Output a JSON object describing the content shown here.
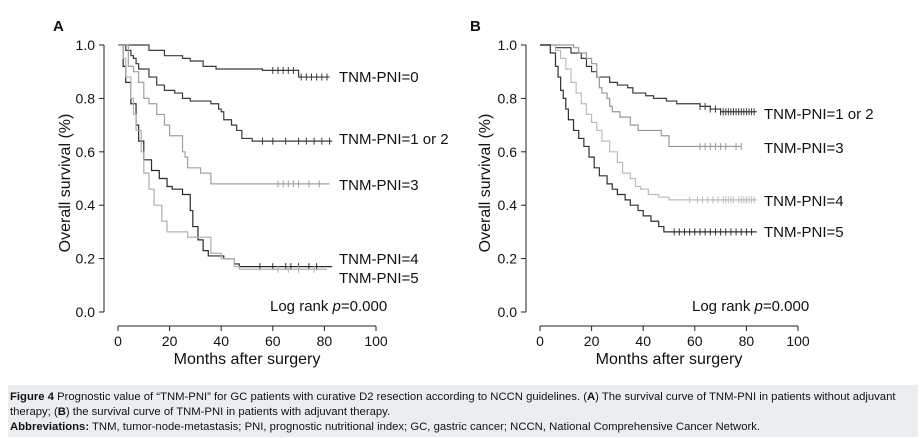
{
  "chart_data": [
    {
      "type": "line",
      "subtype": "kaplan-meier",
      "panel_label": "A",
      "xlabel": "Months after surgery",
      "ylabel": "Overall survival (%)",
      "xlim": [
        0,
        100
      ],
      "ylim": [
        0,
        1.0
      ],
      "xticks": [
        "0",
        "20",
        "40",
        "60",
        "80",
        "100"
      ],
      "yticks": [
        "0.0",
        "0.2",
        "0.4",
        "0.6",
        "0.8",
        "1.0"
      ],
      "annotation_prefix": "Log rank ",
      "annotation_var": "p",
      "annotation_value": "=0.000",
      "series": [
        {
          "name": "TNM-PNI=0",
          "color": "#3a3a3a",
          "steps": [
            [
              0,
              1.0
            ],
            [
              12,
              0.98
            ],
            [
              18,
              0.96
            ],
            [
              25,
              0.95
            ],
            [
              28,
              0.94
            ],
            [
              33,
              0.92
            ],
            [
              38,
              0.91
            ],
            [
              56,
              0.905
            ],
            [
              70,
              0.88
            ],
            [
              82,
              0.88
            ]
          ],
          "censor": [
            60,
            62,
            64,
            66,
            68,
            71,
            73,
            75,
            77,
            79,
            81
          ]
        },
        {
          "name": "TNM-PNI=1 or 2",
          "color": "#3a3a3a",
          "steps": [
            [
              0,
              1.0
            ],
            [
              3,
              0.98
            ],
            [
              5,
              0.96
            ],
            [
              6,
              0.95
            ],
            [
              7,
              0.93
            ],
            [
              8,
              0.91
            ],
            [
              12,
              0.88
            ],
            [
              15,
              0.85
            ],
            [
              18,
              0.83
            ],
            [
              22,
              0.82
            ],
            [
              25,
              0.8
            ],
            [
              28,
              0.79
            ],
            [
              36,
              0.78
            ],
            [
              39,
              0.76
            ],
            [
              40,
              0.75
            ],
            [
              41,
              0.72
            ],
            [
              44,
              0.7
            ],
            [
              46,
              0.68
            ],
            [
              48,
              0.65
            ],
            [
              52,
              0.64
            ],
            [
              83,
              0.64
            ]
          ],
          "censor": [
            56,
            60,
            65,
            70,
            73,
            76,
            79,
            82
          ]
        },
        {
          "name": "TNM-PNI=3",
          "color": "#a0a0a0",
          "steps": [
            [
              0,
              1.0
            ],
            [
              4,
              0.92
            ],
            [
              6,
              0.9
            ],
            [
              8,
              0.86
            ],
            [
              10,
              0.8
            ],
            [
              12,
              0.78
            ],
            [
              15,
              0.74
            ],
            [
              18,
              0.7
            ],
            [
              20,
              0.66
            ],
            [
              25,
              0.6
            ],
            [
              26,
              0.58
            ],
            [
              27,
              0.54
            ],
            [
              30,
              0.54
            ],
            [
              32,
              0.52
            ],
            [
              36,
              0.48
            ],
            [
              82,
              0.48
            ]
          ],
          "censor": [
            62,
            64,
            66,
            68,
            70,
            74,
            78
          ]
        },
        {
          "name": "TNM-PNI=4",
          "color": "#2a2a2a",
          "steps": [
            [
              0,
              1.0
            ],
            [
              2,
              0.92
            ],
            [
              3,
              0.86
            ],
            [
              5,
              0.78
            ],
            [
              7,
              0.7
            ],
            [
              8,
              0.64
            ],
            [
              10,
              0.57
            ],
            [
              13,
              0.53
            ],
            [
              16,
              0.5
            ],
            [
              19,
              0.47
            ],
            [
              21,
              0.46
            ],
            [
              25,
              0.44
            ],
            [
              28,
              0.38
            ],
            [
              29,
              0.32
            ],
            [
              31,
              0.27
            ],
            [
              33,
              0.23
            ],
            [
              35,
              0.21
            ],
            [
              38,
              0.21
            ],
            [
              41,
              0.2
            ],
            [
              45,
              0.18
            ],
            [
              47,
              0.17
            ],
            [
              83,
              0.17
            ]
          ],
          "censor": [
            55,
            60,
            65,
            67,
            70,
            74,
            77
          ]
        },
        {
          "name": "TNM-PNI=5",
          "color": "#b0b0b0",
          "steps": [
            [
              0,
              1.0
            ],
            [
              2,
              0.95
            ],
            [
              3,
              0.88
            ],
            [
              5,
              0.8
            ],
            [
              6,
              0.74
            ],
            [
              7,
              0.68
            ],
            [
              9,
              0.6
            ],
            [
              10,
              0.52
            ],
            [
              12,
              0.46
            ],
            [
              14,
              0.4
            ],
            [
              17,
              0.34
            ],
            [
              19,
              0.3
            ],
            [
              24,
              0.3
            ],
            [
              27,
              0.28
            ],
            [
              32,
              0.28
            ],
            [
              36,
              0.22
            ],
            [
              40,
              0.2
            ],
            [
              45,
              0.17
            ],
            [
              47,
              0.16
            ],
            [
              81,
              0.16
            ]
          ],
          "censor": [
            62,
            66,
            70,
            76
          ]
        }
      ]
    },
    {
      "type": "line",
      "subtype": "kaplan-meier",
      "panel_label": "B",
      "xlabel": "Months after surgery",
      "ylabel": "Overall survival (%)",
      "xlim": [
        0,
        100
      ],
      "ylim": [
        0,
        1.0
      ],
      "xticks": [
        "0",
        "20",
        "40",
        "60",
        "80",
        "100"
      ],
      "yticks": [
        "0.0",
        "0.2",
        "0.4",
        "0.6",
        "0.8",
        "1.0"
      ],
      "annotation_prefix": "Log rank ",
      "annotation_var": "p",
      "annotation_value": "=0.000",
      "series": [
        {
          "name": "TNM-PNI=1 or 2",
          "color": "#3a3a3a",
          "steps": [
            [
              0,
              1.0
            ],
            [
              6,
              0.99
            ],
            [
              12,
              0.97
            ],
            [
              16,
              0.95
            ],
            [
              18,
              0.92
            ],
            [
              20,
              0.9
            ],
            [
              22,
              0.88
            ],
            [
              27,
              0.86
            ],
            [
              30,
              0.85
            ],
            [
              34,
              0.84
            ],
            [
              36,
              0.82
            ],
            [
              41,
              0.81
            ],
            [
              44,
              0.8
            ],
            [
              49,
              0.79
            ],
            [
              53,
              0.78
            ],
            [
              56,
              0.78
            ],
            [
              62,
              0.77
            ],
            [
              66,
              0.76
            ],
            [
              70,
              0.75
            ],
            [
              84,
              0.75
            ]
          ],
          "censor": [
            62,
            64,
            66,
            68,
            70,
            71,
            72,
            73,
            74,
            75,
            76,
            77,
            78,
            79,
            80,
            81,
            82,
            83
          ]
        },
        {
          "name": "TNM-PNI=3",
          "color": "#999999",
          "steps": [
            [
              0,
              1.0
            ],
            [
              13,
              0.99
            ],
            [
              15,
              0.97
            ],
            [
              18,
              0.95
            ],
            [
              20,
              0.93
            ],
            [
              22,
              0.88
            ],
            [
              23,
              0.84
            ],
            [
              24,
              0.82
            ],
            [
              26,
              0.8
            ],
            [
              27,
              0.77
            ],
            [
              28,
              0.75
            ],
            [
              31,
              0.73
            ],
            [
              35,
              0.7
            ],
            [
              38,
              0.68
            ],
            [
              47,
              0.66
            ],
            [
              50,
              0.62
            ],
            [
              78,
              0.62
            ]
          ],
          "censor": [
            62,
            64,
            66,
            68,
            70,
            72,
            76,
            78
          ]
        },
        {
          "name": "TNM-PNI=4",
          "color": "#bbbbbb",
          "steps": [
            [
              0,
              1.0
            ],
            [
              6,
              0.98
            ],
            [
              8,
              0.95
            ],
            [
              10,
              0.91
            ],
            [
              12,
              0.86
            ],
            [
              14,
              0.82
            ],
            [
              16,
              0.78
            ],
            [
              18,
              0.74
            ],
            [
              20,
              0.71
            ],
            [
              22,
              0.68
            ],
            [
              24,
              0.64
            ],
            [
              27,
              0.6
            ],
            [
              30,
              0.56
            ],
            [
              32,
              0.52
            ],
            [
              35,
              0.5
            ],
            [
              37,
              0.47
            ],
            [
              39,
              0.46
            ],
            [
              42,
              0.44
            ],
            [
              46,
              0.43
            ],
            [
              50,
              0.42
            ],
            [
              84,
              0.42
            ]
          ],
          "censor": [
            58,
            61,
            63,
            65,
            67,
            69,
            71,
            72,
            73,
            74,
            75,
            77,
            78,
            79,
            80,
            81,
            82,
            83
          ]
        },
        {
          "name": "TNM-PNI=5",
          "color": "#303030",
          "steps": [
            [
              0,
              1.0
            ],
            [
              4,
              0.97
            ],
            [
              6,
              0.92
            ],
            [
              7,
              0.88
            ],
            [
              8,
              0.83
            ],
            [
              9,
              0.8
            ],
            [
              10,
              0.76
            ],
            [
              11,
              0.72
            ],
            [
              13,
              0.68
            ],
            [
              15,
              0.65
            ],
            [
              17,
              0.62
            ],
            [
              19,
              0.58
            ],
            [
              21,
              0.54
            ],
            [
              23,
              0.51
            ],
            [
              26,
              0.48
            ],
            [
              28,
              0.46
            ],
            [
              30,
              0.44
            ],
            [
              33,
              0.42
            ],
            [
              35,
              0.4
            ],
            [
              38,
              0.38
            ],
            [
              40,
              0.36
            ],
            [
              43,
              0.34
            ],
            [
              46,
              0.32
            ],
            [
              48,
              0.3
            ],
            [
              84,
              0.3
            ]
          ],
          "censor": [
            52,
            54,
            56,
            58,
            60,
            62,
            64,
            66,
            68,
            70,
            72,
            74,
            76,
            78,
            80,
            82
          ]
        }
      ]
    }
  ],
  "caption": {
    "figure_label": "Figure 4",
    "text_1": " Prognostic value of “TNM-PNI” for GC patients with curative D2 resection according to NCCN guidelines. (",
    "a": "A",
    "text_2": ") The survival curve of TNM-PNI in patients without adjuvant therapy; (",
    "b": "B",
    "text_3": ") the survival curve of TNM-PNI in patients with adjuvant therapy.",
    "abbrev_label": "Abbreviations:",
    "abbrev_text": " TNM, tumor-node-metastasis; PNI, prognostic nutritional index; GC, gastric cancer; NCCN, National Comprehensive Cancer Network."
  }
}
